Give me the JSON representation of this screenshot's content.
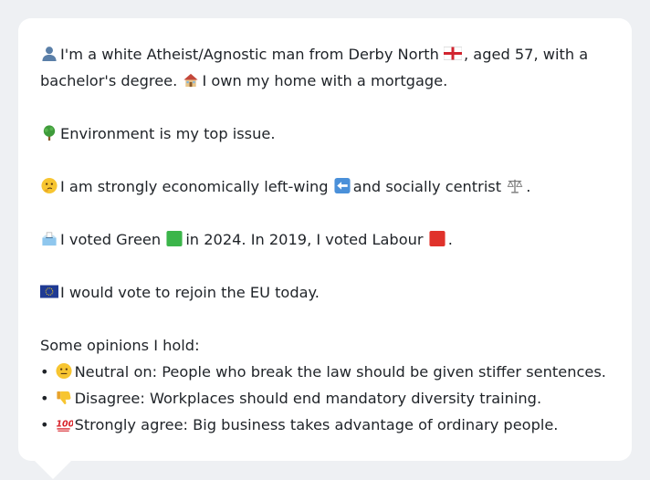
{
  "profile": {
    "line1_text_a": "I'm a white Atheist/Agnostic man from Derby North",
    "line1_text_b": ", aged 57, with a bachelor's degree.",
    "line1_text_c": "I own my home with a mortgage.",
    "issue_text": "Environment is my top issue.",
    "ideology_a": "I am strongly economically left-wing",
    "ideology_b": "and socially centrist",
    "ideology_end": ".",
    "vote_a": "I voted Green",
    "vote_b": "in 2024. In 2019, I voted Labour",
    "vote_end": ".",
    "eu_text": "I would vote to rejoin the EU today."
  },
  "opinions": {
    "heading": "Some opinions I hold:",
    "bullet": "•",
    "items": [
      {
        "icon": "neutral-face-icon",
        "text": "Neutral on: People who break the law should be given stiffer sentences."
      },
      {
        "icon": "thumbs-down-icon",
        "text": "Disagree: Workplaces should end mandatory diversity training."
      },
      {
        "icon": "hundred-points-icon",
        "text": "Strongly agree: Big business takes advantage of ordinary people."
      }
    ]
  },
  "colors": {
    "green_square": "#3bb54a",
    "red_square": "#e0322b",
    "eu_blue": "#1f3a93"
  }
}
